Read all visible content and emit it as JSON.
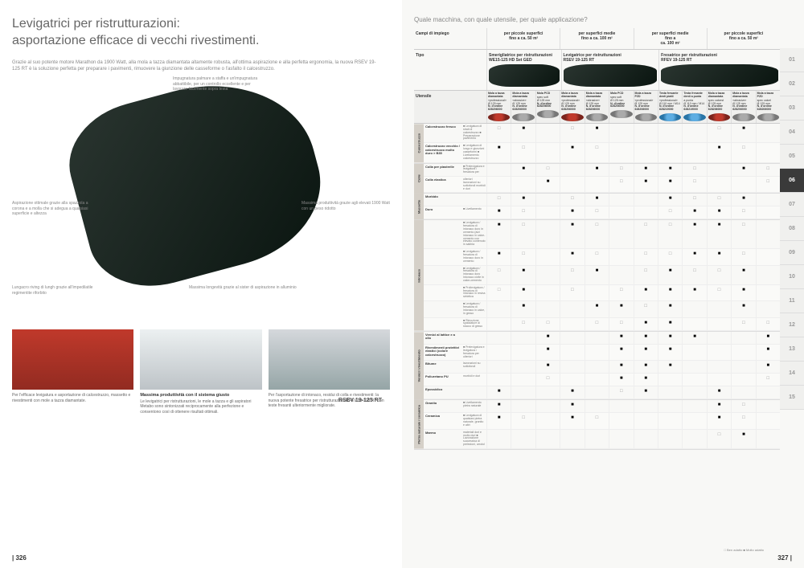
{
  "left": {
    "title": "Levigatrici per ristrutturazioni:\nasportazione efficace di vecchi rivestimenti.",
    "intro": "Grazie al suo potente motore Marathon da 1900 Watt, alla mola a tazza diamantata altamente robusta, all'ottima aspirazione e alla perfetta ergonomia, la nuova RSEV 19-125 RT è la soluzione perfetta per preparare i pavimenti, rimuovere la giunzione delle casseforme o l'asfalto il calcestruzzo.",
    "callouts": {
      "c1": "Impugnatura palmare a staffa e un'impugnatura abbattibile, per un controllo eccellente e per lavorare facilmente sopra testa",
      "c2": "Aspirazione ottimale grazie alla spazzola a corona e a molla che si adegua a qualsiasi superficie e altezza",
      "c3": "Massima produttività grazie agli elevati 1900 Watt con un peso ridotto",
      "c4": "Lungacro riving di lungh grazie all'impedilatile regimentite riforbito",
      "c5": "Massima longevità grazie al sister di aspirazione in alluminio"
    },
    "product_name": "RSEV 19-125 RT",
    "cards": [
      {
        "img": "c1",
        "title": "",
        "text": "Per l'efficace levigatura e asportazione di calcestruzzo, massetto e rivestimenti con mole a tazza diamantate."
      },
      {
        "img": "c2",
        "title": "Massima produttività con il sistema giusto",
        "text": "Le levigatrici per ristrutturazioni, le mole a tazza e gli aspiratori Metabo sono sintonizzati reciprocamente alla perfezione e consentono così di ottenere risultati ottimali."
      },
      {
        "img": "c3",
        "title": "",
        "text": "Per l'asportazione di intonaco, residui di colla e rivestimenti: la nuova potente fresatrice per ristrutturazioni RFEV 19-125 RT con teste fresanti ulteriormente migliorate."
      }
    ],
    "page_num": "| 326"
  },
  "right": {
    "title": "Quale macchina, con quale utensile, per quale applicazione?",
    "header_campi": "Campi di impiego",
    "header_tipo": "Tipo",
    "header_utensile": "Utensile",
    "surface_groups": [
      {
        "label": "per piccole superfici\nfino a ca. 50 m²"
      },
      {
        "label": "per superfici medie\nfino a ca. 100 m²"
      },
      {
        "label": "per superfici medie\nfino a\nca. 100 m²"
      },
      {
        "label": "per piccole superfici\nfino a ca. 50 m²"
      }
    ],
    "machines": [
      {
        "name": "Smerigliatrice per ristrutturazioni",
        "model": "WE15-125 HD Set GED"
      },
      {
        "name": "Levigatrice per ristrutturazioni",
        "model": "RSEV 19-125 RT"
      },
      {
        "name": "Fresatrice per ristrutturazioni",
        "model": "RFEV 19-125 RT"
      }
    ],
    "tools": [
      {
        "name": "Mola a tazza diamantata",
        "sub": "«professional»",
        "dim": "Ø 125 mm",
        "ord": "N. d'ordine 628206000",
        "imgc": "red"
      },
      {
        "name": "Mola a tazza diamantata",
        "sub": "«abrasive»",
        "dim": "Ø 125 mm",
        "ord": "N. d'ordine 628206000",
        "imgc": "gray"
      },
      {
        "name": "Mola PCD",
        "sub": "spec soft",
        "dim": "Ø 125 mm",
        "ord": "N. d'ordine 628206000",
        "imgc": "gray"
      },
      {
        "name": "Mola a tazza diamantata",
        "sub": "«professional»",
        "dim": "Ø 125 mm",
        "ord": "N. d'ordine 628206000",
        "imgc": "red"
      },
      {
        "name": "Mola a tazza diamantata",
        "sub": "«abrasive»",
        "dim": "Ø 125 mm",
        "ord": "N. d'ordine 628206000",
        "imgc": "gray"
      },
      {
        "name": "Mola PCD",
        "sub": "spec soft",
        "dim": "Ø 125 mm",
        "ord": "N. d'ordine 628206000",
        "imgc": "gray"
      },
      {
        "name": "Mola a tazza PZD",
        "sub": "«professional»",
        "dim": "Ø 125 mm",
        "ord": "N. d'ordine 628206000",
        "imgc": "gray"
      },
      {
        "name": "Testa fresante denti piatti",
        "sub": "«professional»",
        "dim": "Ø 110 mm / M14",
        "ord": "N. d'ordine 628219000",
        "imgc": "blue"
      },
      {
        "name": "Testa fresante denti a punta",
        "sub": "a punta",
        "dim": "Ø 110 mm / M14",
        "ord": "N. d'ordine 628219000",
        "imgc": "blue"
      },
      {
        "name": "Mola a tazza diamantata",
        "sub": "spec calcest",
        "dim": "Ø 125 mm",
        "ord": "N. d'ordine 628206000",
        "imgc": "red"
      },
      {
        "name": "Mola a tazza diamantata",
        "sub": "«abrasive»",
        "dim": "Ø 125 mm",
        "ord": "N. d'ordine 628206000",
        "imgc": "gray"
      },
      {
        "name": "Mola a tazza PZD",
        "sub": "spec calcel",
        "dim": "Ø 125 mm",
        "ord": "N. d'ordine 628206000",
        "imgc": "gray"
      }
    ],
    "categories": [
      {
        "name": "Calcestruzzo",
        "rows": [
          {
            "material": "Calcestruzzo fresco",
            "desc": "■ Levigatura di strati di calcestruzzo ■ Preparazione pavimento",
            "cells": [
              "□",
              "■",
              "",
              "□",
              "■",
              "",
              "",
              "",
              "",
              "□",
              "■",
              ""
            ]
          },
          {
            "material": "Calcestruzzo vecchio / calcestruzzo molto duro > B35",
            "desc": "■ Levigatura di lungo e giunzioni casseformi ■ Livellamento calcestruzzo",
            "cells": [
              "■",
              "□",
              "",
              "■",
              "□",
              "",
              "",
              "",
              "",
              "■",
              "□",
              ""
            ]
          }
        ]
      },
      {
        "name": "Colle",
        "rows": [
          {
            "material": "Colla per piastrelle",
            "desc": "■ Prelevigatura e levigatura / fresatura per",
            "cells": [
              "",
              "■",
              "□",
              "",
              "■",
              "□",
              "■",
              "■",
              "□",
              "",
              "■",
              "□"
            ]
          },
          {
            "material": "Colla elastica",
            "desc": "ulteriori lavorazioni su sottofondi morbidi e duri",
            "cells": [
              "",
              "",
              "■",
              "",
              "",
              "□",
              "■",
              "■",
              "□",
              "",
              "",
              "□"
            ]
          }
        ]
      },
      {
        "name": "Massetto",
        "rows": [
          {
            "material": "Morbido",
            "desc": "",
            "cells": [
              "□",
              "■",
              "",
              "□",
              "■",
              "",
              "",
              "■",
              "□",
              "□",
              "■",
              ""
            ]
          },
          {
            "material": "Duro",
            "desc": "■ Livellamento",
            "cells": [
              "■",
              "□",
              "",
              "■",
              "□",
              "",
              "",
              "□",
              "■",
              "■",
              "□",
              ""
            ]
          }
        ]
      },
      {
        "name": "Intonaco",
        "rows": [
          {
            "material": "",
            "desc": "■ Levigatura / fresatura di intonaco duro in cemento (aizi intonaco in calce-cemento con elevato contenuto in sabbia",
            "cells": [
              "■",
              "□",
              "",
              "■",
              "□",
              "",
              "□",
              "□",
              "■",
              "■",
              "□",
              ""
            ]
          },
          {
            "material": "",
            "desc": "■ Levigatura / fresatura di intonaco duro in cemento",
            "cells": [
              "■",
              "□",
              "",
              "■",
              "□",
              "",
              "□",
              "□",
              "■",
              "■",
              "□",
              ""
            ]
          },
          {
            "material": "",
            "desc": "■ Levigatura / fresatura di intonaco duro Intonaco civile in calce-cemento",
            "cells": [
              "□",
              "■",
              "",
              "□",
              "■",
              "",
              "□",
              "■",
              "□",
              "□",
              "■",
              ""
            ]
          },
          {
            "material": "",
            "desc": "■ Prolievigatura / fresatura di intonaco in resina sintetica",
            "cells": [
              "□",
              "■",
              "",
              "□",
              "",
              "□",
              "■",
              "■",
              "■",
              "□",
              "■",
              ""
            ]
          },
          {
            "material": "",
            "desc": "■ Levigatura / fresatura di intonaco in calce, in gesso",
            "cells": [
              "",
              "■",
              "",
              "",
              "■",
              "■",
              "□",
              "■",
              "",
              "",
              "■",
              ""
            ]
          },
          {
            "material": "",
            "desc": "■ Rimozione spatolature di stucco di gesso",
            "cells": [
              "",
              "□",
              "□",
              "",
              "□",
              "□",
              "■",
              "■",
              "",
              "",
              "□",
              "□"
            ]
          }
        ]
      },
      {
        "name": "Vernici / rivestimento",
        "rows": [
          {
            "material": "Vernici al lattice e a olio",
            "desc": "",
            "cells": [
              "",
              "",
              "■",
              "",
              "",
              "■",
              "■",
              "■",
              "■",
              "",
              "",
              "■"
            ]
          },
          {
            "material": "Rivestimenti protettivi elastici (colore calcestruzzo)",
            "desc": "■ Prelevigatura e levigatura / fresatura per ulteriori",
            "cells": [
              "",
              "",
              "■",
              "",
              "",
              "■",
              "■",
              "■",
              "",
              "",
              "",
              "■"
            ]
          },
          {
            "material": "Bitume",
            "desc": "lavorazioni su sottofondi",
            "cells": [
              "",
              "",
              "■",
              "",
              "",
              "■",
              "■",
              "■",
              "",
              "",
              "",
              "■"
            ]
          },
          {
            "material": "Poliuretano PU",
            "desc": "morbidi e duri",
            "cells": [
              "",
              "",
              "□",
              "",
              "",
              "■",
              "■",
              "",
              "",
              "",
              "",
              "□"
            ]
          },
          {
            "material": "Epossidico",
            "desc": "",
            "cells": [
              "■",
              "",
              "",
              "■",
              "",
              "□",
              "■",
              "",
              "",
              "■",
              "",
              ""
            ]
          }
        ]
      },
      {
        "name": "Pietra naturale / ceramica",
        "rows": [
          {
            "material": "Granito",
            "desc": "■ Livellamento pietra naturale",
            "cells": [
              "■",
              "",
              "",
              "■",
              "",
              "",
              "",
              "",
              "",
              "■",
              "□",
              ""
            ]
          },
          {
            "material": "Ceramica",
            "desc": "■ Levigatura di qualsiasi pietra naturale, granito e altri",
            "cells": [
              "■",
              "□",
              "",
              "■",
              "□",
              "",
              "",
              "",
              "",
              "■",
              "□",
              ""
            ]
          },
          {
            "material": "Marmo",
            "desc": "materiali duri e molto duri ■ Lavorazione successiva di prelezioni, arrotol",
            "cells": [
              "",
              "",
              "",
              "",
              "",
              "",
              "",
              "",
              "",
              "□",
              "■",
              ""
            ]
          }
        ]
      }
    ],
    "legend": "□ Ben adatto   ■ Molto adatto",
    "tabs": [
      "01",
      "02",
      "03",
      "04",
      "05",
      "06",
      "07",
      "08",
      "09",
      "10",
      "11",
      "12",
      "13",
      "14",
      "15"
    ],
    "active_tab": "06",
    "page_num": "327 |"
  },
  "colors": {
    "teal": "#7fb8b0",
    "dark": "#3a3a3a",
    "bg": "#f8f8f6"
  }
}
